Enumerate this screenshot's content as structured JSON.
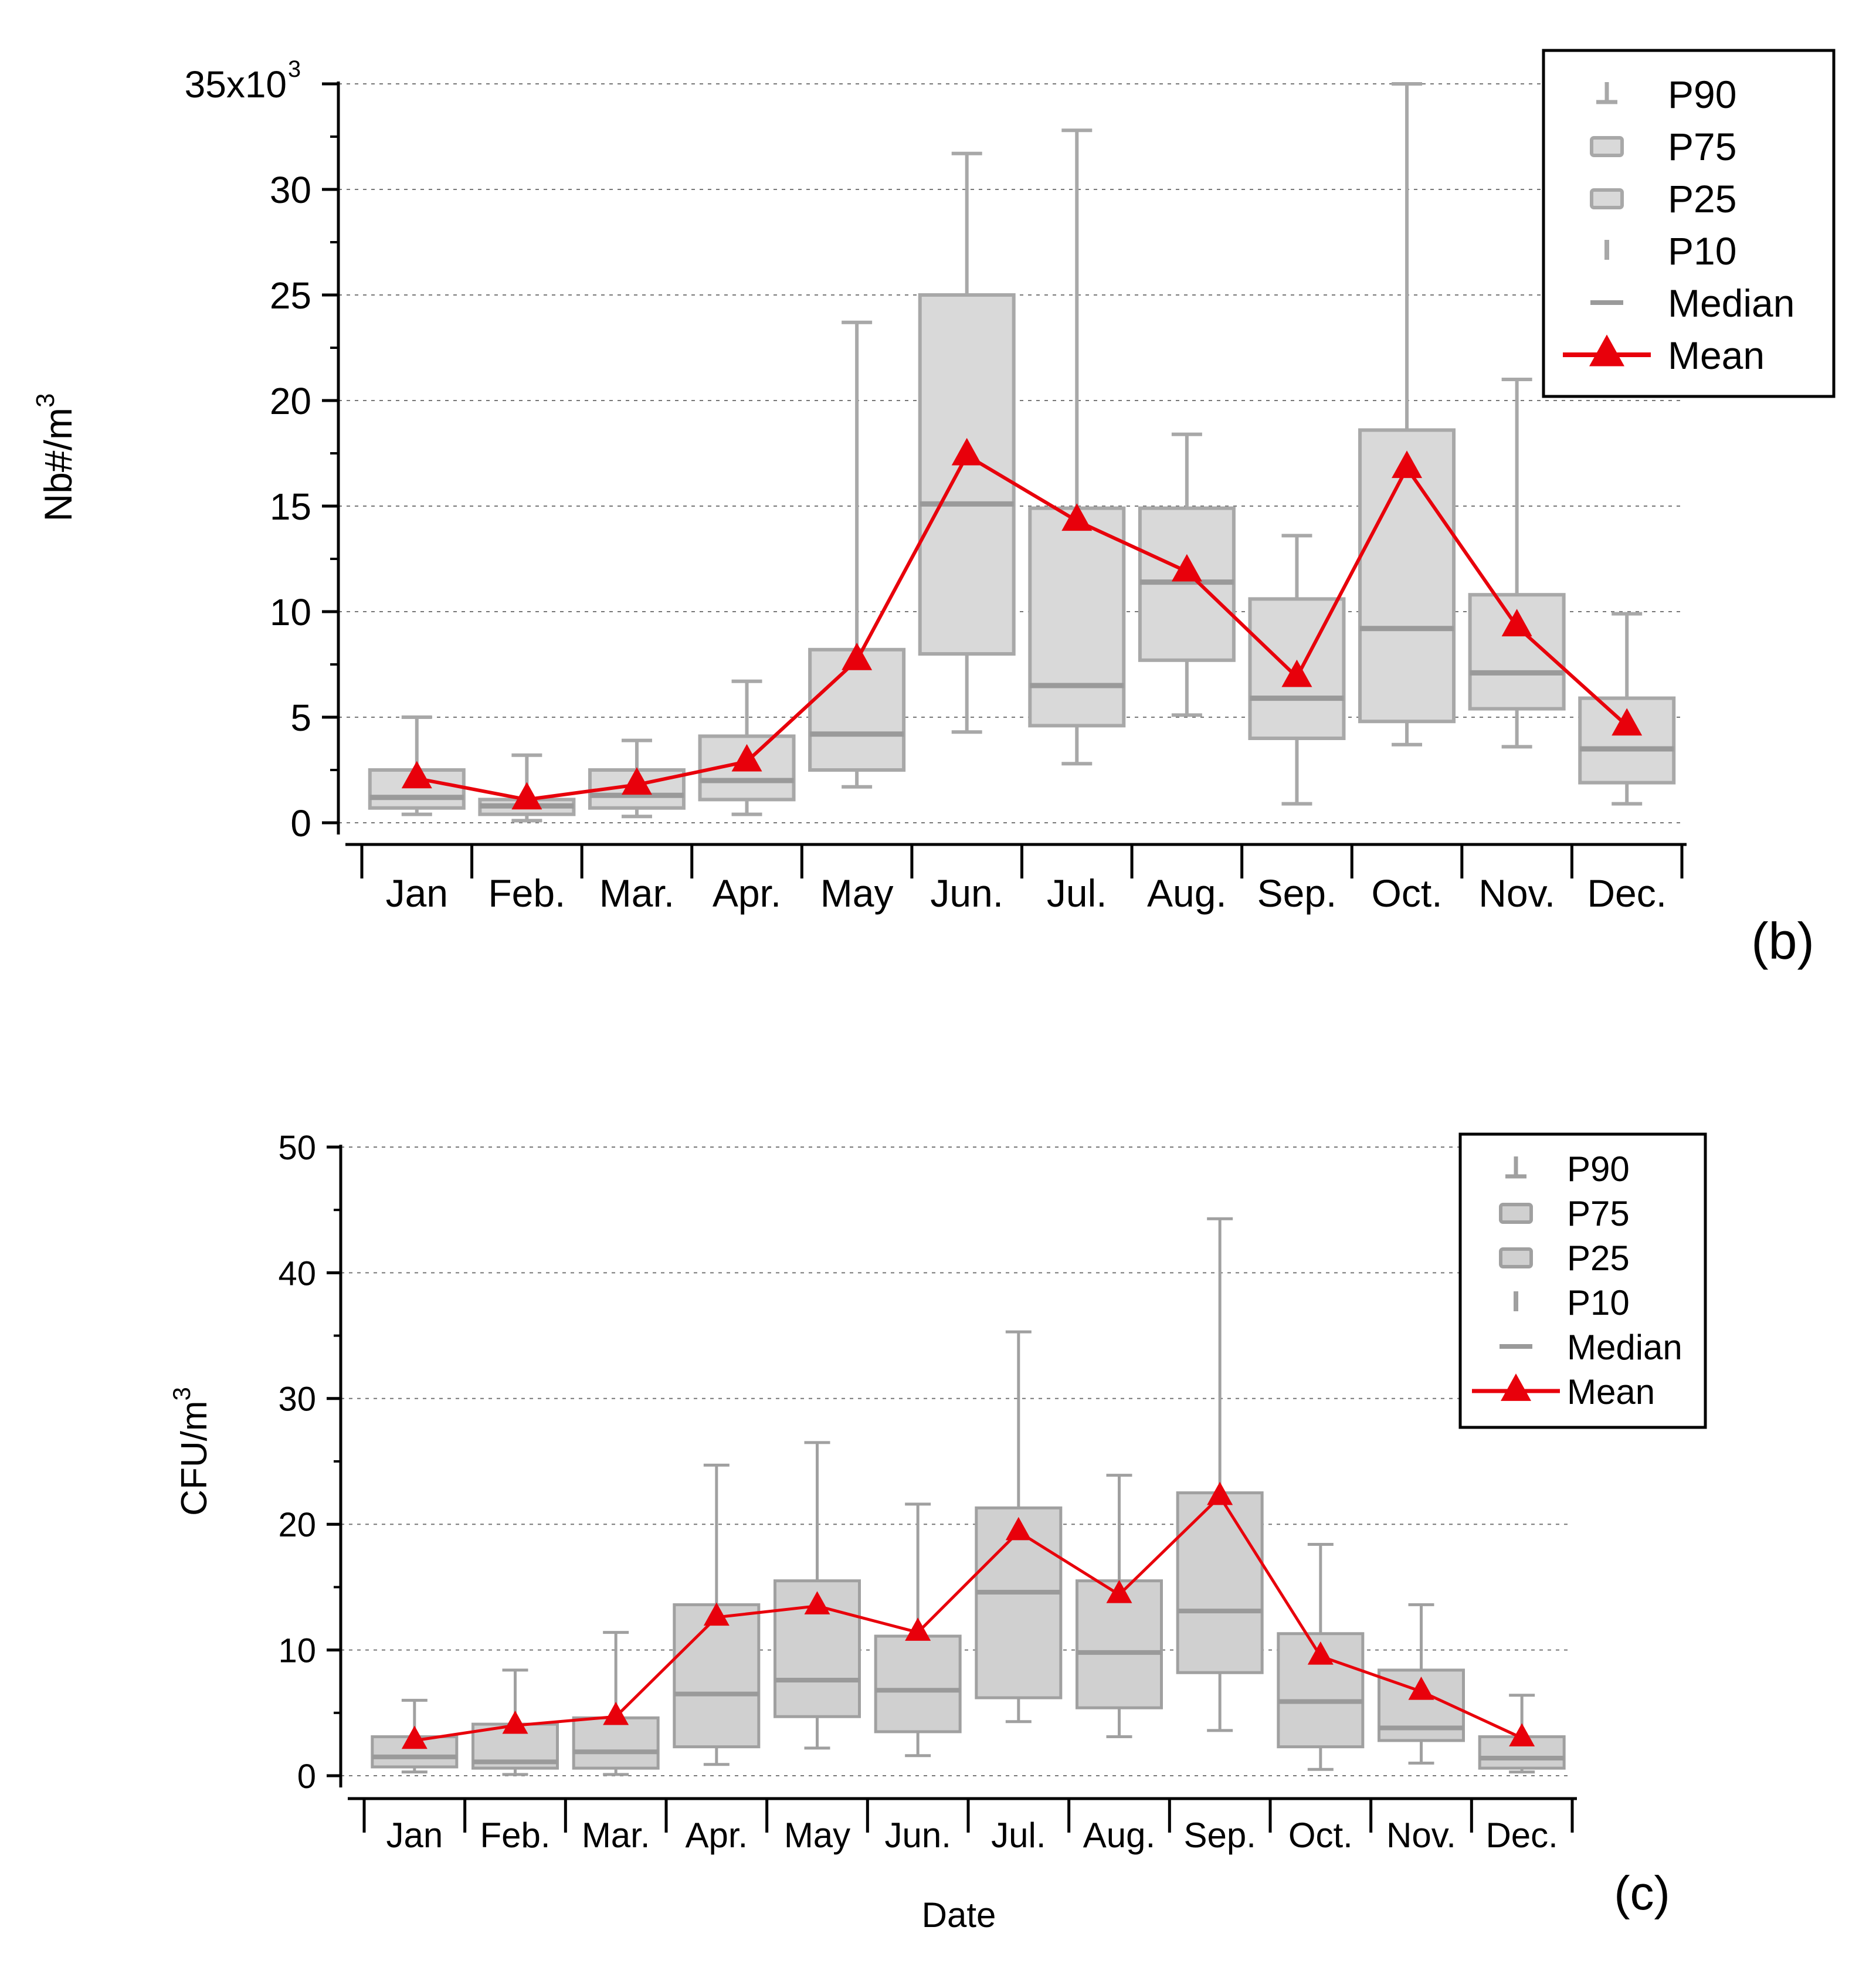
{
  "chart_data": [
    {
      "type": "box",
      "panel_label": "(b)",
      "ylabel_text": "Nb#/m",
      "ylabel_sup": "3",
      "xlabel": "",
      "ylim": [
        0,
        35000
      ],
      "y_axis_top_label": {
        "base": "35x10",
        "sup": "3"
      },
      "y_ticks": [
        {
          "value": 0,
          "label": "0"
        },
        {
          "value": 5000,
          "label": "5"
        },
        {
          "value": 10000,
          "label": "10"
        },
        {
          "value": 15000,
          "label": "15"
        },
        {
          "value": 20000,
          "label": "20"
        },
        {
          "value": 25000,
          "label": "25"
        },
        {
          "value": 30000,
          "label": "30"
        }
      ],
      "categories": [
        "Jan",
        "Feb.",
        "Mar.",
        "Apr.",
        "May",
        "Jun.",
        "Jul.",
        "Aug.",
        "Sep.",
        "Oct.",
        "Nov.",
        "Dec."
      ],
      "p10": [
        400,
        100,
        300,
        400,
        1700,
        4300,
        2800,
        5100,
        900,
        3700,
        3600,
        900
      ],
      "p25": [
        700,
        400,
        700,
        1100,
        2500,
        8000,
        4600,
        7700,
        4000,
        4800,
        5400,
        1900
      ],
      "median": [
        1200,
        800,
        1300,
        2000,
        4200,
        15100,
        6500,
        11400,
        5900,
        9200,
        7100,
        3500
      ],
      "p75": [
        2500,
        1100,
        2500,
        4100,
        8200,
        25000,
        14900,
        14900,
        10600,
        18600,
        10800,
        5900
      ],
      "p90": [
        5000,
        3200,
        3900,
        6700,
        23700,
        31700,
        32800,
        18400,
        13600,
        35000,
        21000,
        9900
      ],
      "mean": [
        2100,
        1100,
        1800,
        2900,
        7700,
        17400,
        14300,
        11900,
        6900,
        16800,
        9300,
        4600
      ],
      "legend": {
        "position": "top-right",
        "entries": [
          "P90",
          "P75",
          "P25",
          "P10",
          "Median",
          "Mean"
        ]
      },
      "colors": {
        "box_fill": "#d9d9d9",
        "box_stroke": "#a8a8a8",
        "median": "#9a9a9a",
        "mean": "#e8000b",
        "axis": "#000000",
        "grid": "#777777"
      }
    },
    {
      "type": "box",
      "panel_label": "(c)",
      "ylabel_text": "CFU/m",
      "ylabel_sup": "3",
      "xlabel": "Date",
      "ylim": [
        0,
        50
      ],
      "y_ticks": [
        {
          "value": 0,
          "label": "0"
        },
        {
          "value": 10,
          "label": "10"
        },
        {
          "value": 20,
          "label": "20"
        },
        {
          "value": 30,
          "label": "30"
        },
        {
          "value": 40,
          "label": "40"
        },
        {
          "value": 50,
          "label": "50"
        }
      ],
      "categories": [
        "Jan",
        "Feb.",
        "Mar.",
        "Apr.",
        "May",
        "Jun.",
        "Jul.",
        "Aug.",
        "Sep.",
        "Oct.",
        "Nov.",
        "Dec."
      ],
      "p10": [
        0.3,
        0.1,
        0.1,
        0.9,
        2.2,
        1.6,
        4.3,
        3.1,
        3.6,
        0.5,
        1.0,
        0.3
      ],
      "p25": [
        0.7,
        0.6,
        0.6,
        2.3,
        4.7,
        3.5,
        6.2,
        5.4,
        8.2,
        2.3,
        2.8,
        0.6
      ],
      "median": [
        1.5,
        1.1,
        1.9,
        6.5,
        7.6,
        6.8,
        14.6,
        9.8,
        13.1,
        5.9,
        3.8,
        1.4
      ],
      "p75": [
        3.1,
        4.1,
        4.6,
        13.6,
        15.5,
        11.1,
        21.3,
        15.5,
        22.5,
        11.3,
        8.4,
        3.1
      ],
      "p90": [
        6.0,
        8.4,
        11.4,
        24.7,
        26.5,
        21.6,
        35.3,
        23.9,
        44.3,
        18.4,
        13.6,
        6.4
      ],
      "mean": [
        2.8,
        4.0,
        4.7,
        12.6,
        13.5,
        11.4,
        19.4,
        14.4,
        22.2,
        9.5,
        6.7,
        3.0
      ],
      "legend": {
        "position": "top-right",
        "entries": [
          "P90",
          "P75",
          "P25",
          "P10",
          "Median",
          "Mean"
        ]
      },
      "colors": {
        "box_fill": "#d0d0d0",
        "box_stroke": "#a0a0a0",
        "median": "#9a9a9a",
        "mean": "#e8000b",
        "axis": "#000000",
        "grid": "#777777"
      }
    }
  ]
}
